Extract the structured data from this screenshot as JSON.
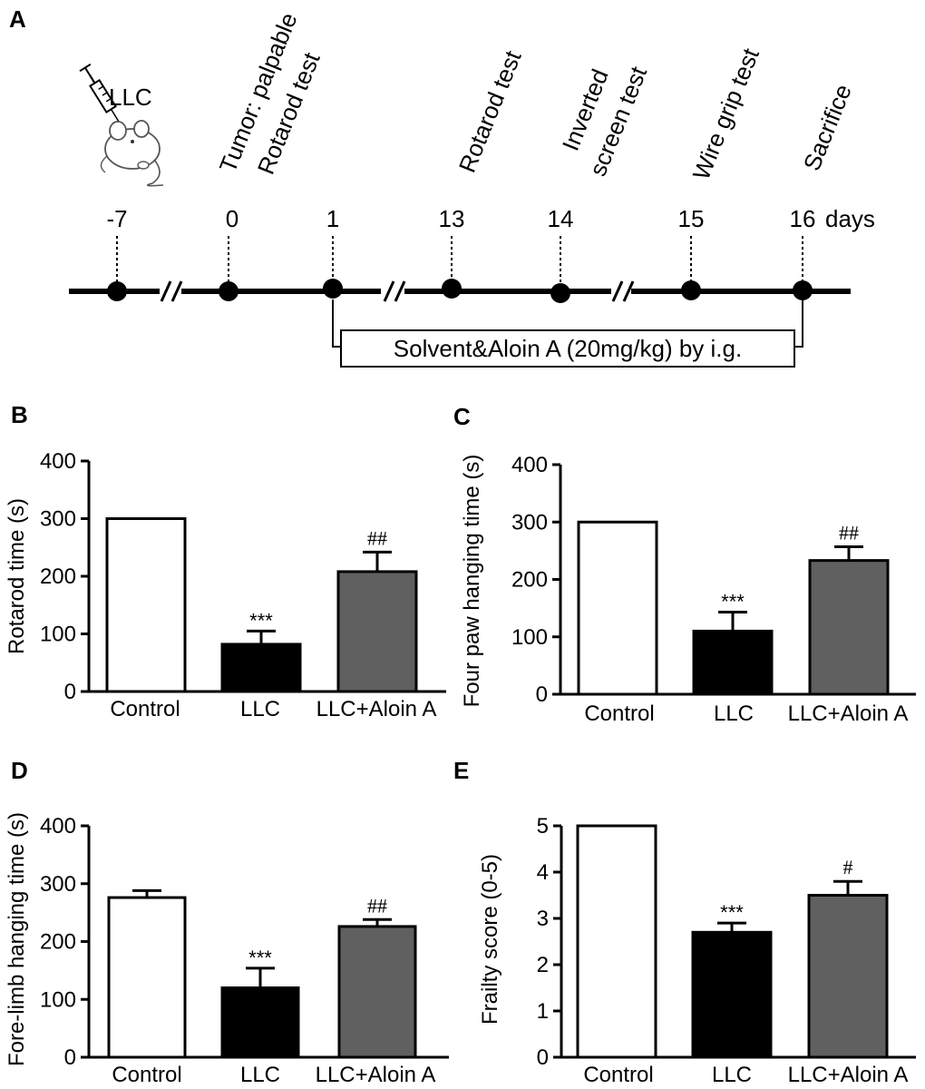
{
  "panelA": {
    "letter": "A",
    "injection_label": "LLC",
    "days_label": "days",
    "events": [
      {
        "day": "-7",
        "labels": []
      },
      {
        "day": "0",
        "labels": [
          "Tumor: palpable"
        ]
      },
      {
        "day": "1",
        "labels": [
          "Rotarod test"
        ]
      },
      {
        "day": "13",
        "labels": [
          "Rotarod test"
        ]
      },
      {
        "day": "14",
        "labels": [
          "Inverted",
          "screen test"
        ]
      },
      {
        "day": "15",
        "labels": [
          "Wire grip test"
        ]
      },
      {
        "day": "16",
        "labels": [
          "Sacrifice"
        ]
      }
    ],
    "treatment_label": "Solvent&Aloin A (20mg/kg) by i.g."
  },
  "colors": {
    "control": "#ffffff",
    "llc": "#000000",
    "aloin": "#606060",
    "stroke": "#000000"
  },
  "chart_data": [
    {
      "panel": "B",
      "type": "bar",
      "categories": [
        "Control",
        "LLC",
        "LLC+Aloin A"
      ],
      "values": [
        300,
        82,
        208
      ],
      "errors": [
        0,
        23,
        34
      ],
      "annotations": [
        "",
        "***",
        "##"
      ],
      "ylabel": "Rotarod time (s)",
      "ylim": [
        0,
        400
      ],
      "yticks": [
        0,
        100,
        200,
        300,
        400
      ]
    },
    {
      "panel": "C",
      "type": "bar",
      "categories": [
        "Control",
        "LLC",
        "LLC+Aloin A"
      ],
      "values": [
        300,
        110,
        233
      ],
      "errors": [
        0,
        33,
        24
      ],
      "annotations": [
        "",
        "***",
        "##"
      ],
      "ylabel": "Four paw hanging time (s)",
      "ylim": [
        0,
        400
      ],
      "yticks": [
        0,
        100,
        200,
        300,
        400
      ]
    },
    {
      "panel": "D",
      "type": "bar",
      "categories": [
        "Control",
        "LLC",
        "LLC+Aloin A"
      ],
      "values": [
        276,
        120,
        226
      ],
      "errors": [
        12,
        34,
        12
      ],
      "annotations": [
        "",
        "***",
        "##"
      ],
      "ylabel": "Fore-limb hanging time (s)",
      "ylim": [
        0,
        400
      ],
      "yticks": [
        0,
        100,
        200,
        300,
        400
      ]
    },
    {
      "panel": "E",
      "type": "bar",
      "categories": [
        "Control",
        "LLC",
        "LLC+Aloin A"
      ],
      "values": [
        5,
        2.7,
        3.5
      ],
      "errors": [
        0,
        0.2,
        0.3
      ],
      "annotations": [
        "",
        "***",
        "#"
      ],
      "ylabel": "Frailty score (0-5)",
      "ylim": [
        0,
        5
      ],
      "yticks": [
        0,
        1,
        2,
        3,
        4,
        5
      ]
    }
  ]
}
